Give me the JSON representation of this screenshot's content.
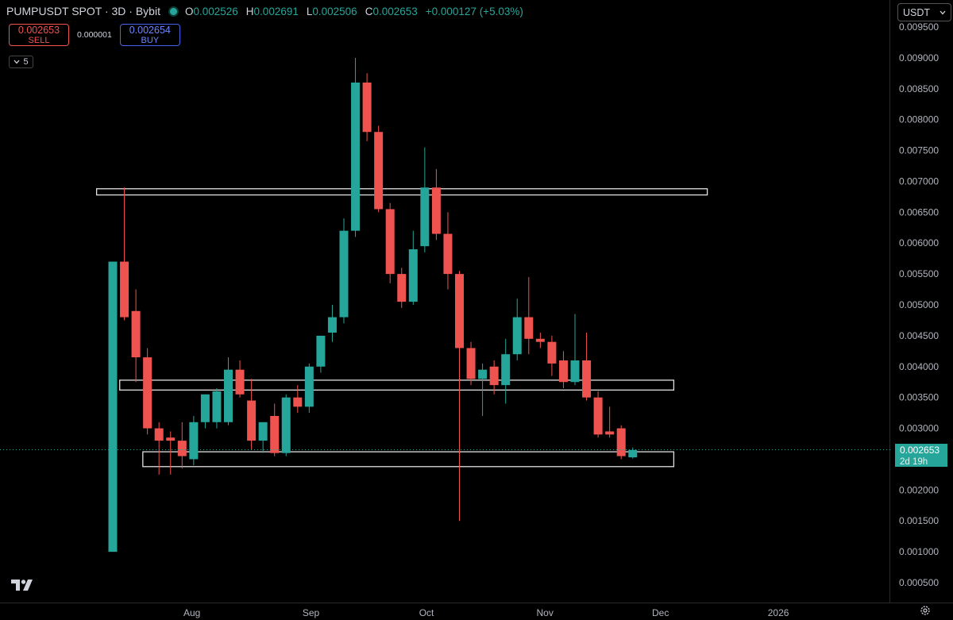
{
  "header": {
    "symbol": "PUMPUSDT SPOT · 3D · Bybit",
    "o_label": "O",
    "o": "0.002526",
    "h_label": "H",
    "h": "0.002691",
    "l_label": "L",
    "l": "0.002506",
    "c_label": "C",
    "c": "0.002653",
    "change": "+0.000127 (+5.03%)"
  },
  "trade": {
    "sell_price": "0.002653",
    "sell_label": "SELL",
    "spread": "0.000001",
    "buy_price": "0.002654",
    "buy_label": "BUY"
  },
  "indicator_count": "5",
  "currency": "USDT",
  "last_price": {
    "value": "0.002653",
    "countdown": "2d 19h"
  },
  "colors": {
    "up": "#26a69a",
    "down": "#ef5350",
    "background": "#000000"
  },
  "chart_data": {
    "type": "candlestick",
    "ylim": [
      0.00025,
      0.00972
    ],
    "y_ticks": [
      "0.009500",
      "0.009000",
      "0.008500",
      "0.008000",
      "0.007500",
      "0.007000",
      "0.006500",
      "0.006000",
      "0.005500",
      "0.005000",
      "0.004500",
      "0.004000",
      "0.003500",
      "0.003000",
      "0.002500",
      "0.002000",
      "0.001500",
      "0.001000",
      "0.000500"
    ],
    "x_ticks": [
      {
        "label": "Aug",
        "index": 6.85
      },
      {
        "label": "Sep",
        "index": 17.15
      },
      {
        "label": "Oct",
        "index": 27.15
      },
      {
        "label": "Nov",
        "index": 37.4
      },
      {
        "label": "Dec",
        "index": 47.4
      },
      {
        "label": "2026",
        "index": 57.6
      }
    ],
    "candles": [
      {
        "o": 0.001,
        "h": 0.0057,
        "l": 0.001,
        "c": 0.0057
      },
      {
        "o": 0.0057,
        "h": 0.0069,
        "l": 0.00475,
        "c": 0.0048
      },
      {
        "o": 0.0049,
        "h": 0.00525,
        "l": 0.00375,
        "c": 0.00415
      },
      {
        "o": 0.00415,
        "h": 0.0043,
        "l": 0.0029,
        "c": 0.003
      },
      {
        "o": 0.003,
        "h": 0.0031,
        "l": 0.00225,
        "c": 0.0028
      },
      {
        "o": 0.00285,
        "h": 0.00295,
        "l": 0.00225,
        "c": 0.0028
      },
      {
        "o": 0.0028,
        "h": 0.0031,
        "l": 0.00235,
        "c": 0.00255
      },
      {
        "o": 0.0025,
        "h": 0.0032,
        "l": 0.0024,
        "c": 0.0031
      },
      {
        "o": 0.0031,
        "h": 0.00355,
        "l": 0.003,
        "c": 0.00355
      },
      {
        "o": 0.0031,
        "h": 0.00365,
        "l": 0.003,
        "c": 0.0036
      },
      {
        "o": 0.0031,
        "h": 0.00415,
        "l": 0.00305,
        "c": 0.00395
      },
      {
        "o": 0.00395,
        "h": 0.0041,
        "l": 0.0035,
        "c": 0.00355
      },
      {
        "o": 0.00345,
        "h": 0.0038,
        "l": 0.00265,
        "c": 0.0028
      },
      {
        "o": 0.0028,
        "h": 0.0031,
        "l": 0.0026,
        "c": 0.0031
      },
      {
        "o": 0.0032,
        "h": 0.0034,
        "l": 0.00255,
        "c": 0.0026
      },
      {
        "o": 0.0026,
        "h": 0.00355,
        "l": 0.00255,
        "c": 0.0035
      },
      {
        "o": 0.0035,
        "h": 0.0037,
        "l": 0.00325,
        "c": 0.00335
      },
      {
        "o": 0.00335,
        "h": 0.00405,
        "l": 0.00325,
        "c": 0.004
      },
      {
        "o": 0.004,
        "h": 0.0045,
        "l": 0.0039,
        "c": 0.0045
      },
      {
        "o": 0.00455,
        "h": 0.005,
        "l": 0.0044,
        "c": 0.0048
      },
      {
        "o": 0.0048,
        "h": 0.0064,
        "l": 0.0047,
        "c": 0.0062
      },
      {
        "o": 0.0062,
        "h": 0.009,
        "l": 0.0061,
        "c": 0.0086
      },
      {
        "o": 0.0086,
        "h": 0.00875,
        "l": 0.00765,
        "c": 0.0078
      },
      {
        "o": 0.0078,
        "h": 0.0079,
        "l": 0.0065,
        "c": 0.00655
      },
      {
        "o": 0.00655,
        "h": 0.00665,
        "l": 0.00535,
        "c": 0.0055
      },
      {
        "o": 0.0055,
        "h": 0.0056,
        "l": 0.00495,
        "c": 0.00505
      },
      {
        "o": 0.00505,
        "h": 0.0062,
        "l": 0.005,
        "c": 0.0059
      },
      {
        "o": 0.00595,
        "h": 0.00755,
        "l": 0.00585,
        "c": 0.0069
      },
      {
        "o": 0.0069,
        "h": 0.0072,
        "l": 0.00605,
        "c": 0.00615
      },
      {
        "o": 0.00615,
        "h": 0.0065,
        "l": 0.00525,
        "c": 0.0055
      },
      {
        "o": 0.0055,
        "h": 0.00555,
        "l": 0.0015,
        "c": 0.0043
      },
      {
        "o": 0.0043,
        "h": 0.0044,
        "l": 0.0037,
        "c": 0.0038
      },
      {
        "o": 0.0038,
        "h": 0.00405,
        "l": 0.0032,
        "c": 0.00395
      },
      {
        "o": 0.004,
        "h": 0.0041,
        "l": 0.00355,
        "c": 0.0037
      },
      {
        "o": 0.0037,
        "h": 0.00445,
        "l": 0.0034,
        "c": 0.0042
      },
      {
        "o": 0.0042,
        "h": 0.0051,
        "l": 0.0041,
        "c": 0.0048
      },
      {
        "o": 0.0048,
        "h": 0.00545,
        "l": 0.0042,
        "c": 0.00445
      },
      {
        "o": 0.00445,
        "h": 0.00455,
        "l": 0.0043,
        "c": 0.0044
      },
      {
        "o": 0.0044,
        "h": 0.0045,
        "l": 0.00385,
        "c": 0.00405
      },
      {
        "o": 0.0041,
        "h": 0.00425,
        "l": 0.00365,
        "c": 0.00375
      },
      {
        "o": 0.00375,
        "h": 0.00485,
        "l": 0.0037,
        "c": 0.0041
      },
      {
        "o": 0.0041,
        "h": 0.00455,
        "l": 0.00345,
        "c": 0.0035
      },
      {
        "o": 0.0035,
        "h": 0.0036,
        "l": 0.00285,
        "c": 0.0029
      },
      {
        "o": 0.00295,
        "h": 0.00335,
        "l": 0.00285,
        "c": 0.0029
      },
      {
        "o": 0.003,
        "h": 0.00305,
        "l": 0.0025,
        "c": 0.00255
      },
      {
        "o": 0.00253,
        "h": 0.00269,
        "l": 0.00251,
        "c": 0.00265
      }
    ],
    "zones": [
      {
        "from_index": -1.4,
        "to_index": 51.45,
        "top": 0.00688,
        "bottom": 0.00678
      },
      {
        "from_index": 0.6,
        "to_index": 48.55,
        "top": 0.00378,
        "bottom": 0.00362
      },
      {
        "from_index": 2.6,
        "to_index": 48.55,
        "top": 0.00262,
        "bottom": 0.00238
      }
    ],
    "last_price": 0.002653
  }
}
